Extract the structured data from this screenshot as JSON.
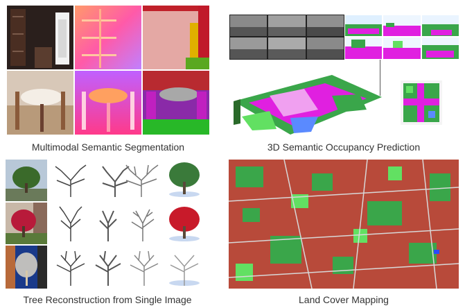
{
  "panels": {
    "segmentation": {
      "caption": "Multimodal Semantic Segmentation"
    },
    "occupancy": {
      "caption": "3D Semantic Occupancy Prediction"
    },
    "trees": {
      "caption": "Tree Reconstruction from Single Image"
    },
    "landcover": {
      "caption": "Land Cover Mapping"
    }
  },
  "colors": {
    "magenta": "#e020e0",
    "green": "#3aa64a",
    "lightgreen": "#62e062",
    "red": "#b84a3a",
    "gray": "#8a8a8a"
  }
}
